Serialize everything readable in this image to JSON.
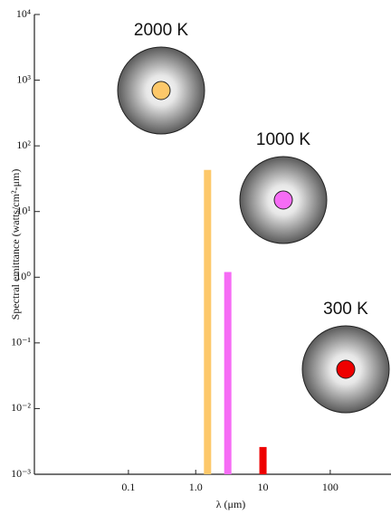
{
  "chart_data": {
    "type": "bar",
    "x_label": "λ (μm)",
    "y_label": "Spectral emittance (watts/cm²-μm)",
    "xscale": "log",
    "yscale": "log",
    "xlim": [
      0.004,
      800
    ],
    "ylim": [
      0.001,
      10000
    ],
    "xticks": [
      0.1,
      {
        "value": 1,
        "label": "1.0"
      },
      10,
      100
    ],
    "yticks": [
      {
        "value": 0.001,
        "label": "10⁻³"
      },
      {
        "value": 0.01,
        "label": "10⁻²"
      },
      {
        "value": 0.1,
        "label": "10⁻¹"
      },
      {
        "value": 1,
        "label": "10⁰"
      },
      {
        "value": 10,
        "label": "10¹"
      },
      {
        "value": 100,
        "label": "10²"
      },
      {
        "value": 1000,
        "label": "10³"
      },
      {
        "value": 10000,
        "label": "10⁴"
      }
    ],
    "series": [
      {
        "name": "2000 K",
        "color": "#fdc86a",
        "x": [
          1.5
        ],
        "values": [
          43
        ]
      },
      {
        "name": "1000 K",
        "color": "#f66cf5",
        "x": [
          3
        ],
        "values": [
          1.2
        ]
      },
      {
        "name": "300 K",
        "color": "#ee0000",
        "x": [
          10
        ],
        "values": [
          0.0026
        ]
      }
    ]
  }
}
